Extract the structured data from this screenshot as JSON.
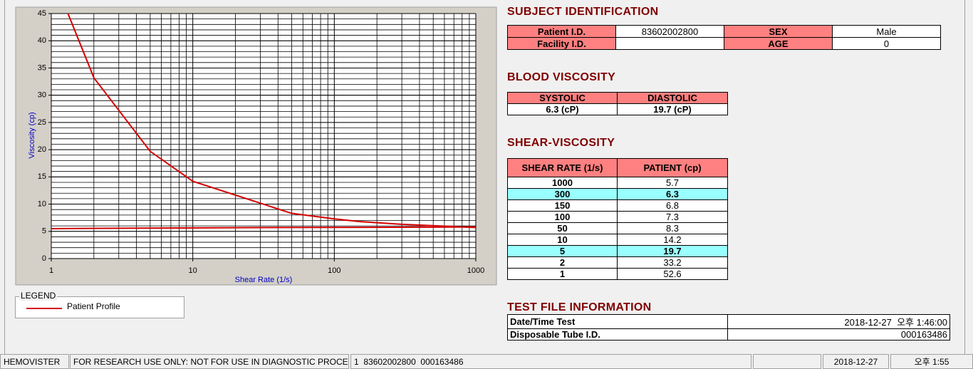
{
  "chart_data": {
    "type": "line",
    "x_label": "Shear Rate (1/s)",
    "y_label": "Viscosity (cp)",
    "log_x": true,
    "xlim": [
      1,
      1000
    ],
    "xticks": [
      1,
      10,
      100,
      1000
    ],
    "ylim": [
      0,
      45
    ],
    "yticks": [
      0,
      5,
      10,
      15,
      20,
      25,
      30,
      35,
      40,
      45
    ],
    "grid": true,
    "minor_grid": true,
    "series": [
      {
        "name": "Patient Profile",
        "color": "#d40000",
        "x": [
          1,
          2,
          5,
          10,
          50,
          100,
          150,
          300,
          1000
        ],
        "values": [
          52.6,
          33.2,
          19.7,
          14.2,
          8.3,
          7.3,
          6.8,
          6.3,
          5.7
        ]
      },
      {
        "color": "#d40000",
        "x": [
          1,
          35,
          1000
        ],
        "values": [
          5.5,
          5.7,
          5.8
        ]
      }
    ]
  },
  "legend": {
    "title": "LEGEND"
  },
  "subject": {
    "title": "SUBJECT IDENTIFICATION",
    "patient_id_label": "Patient I.D.",
    "patient_id": "83602002800",
    "facility_id_label": "Facility I.D.",
    "sex_label": "SEX",
    "sex": "Male",
    "age_label": "AGE",
    "age": 0
  },
  "blood": {
    "title": "BLOOD VISCOSITY",
    "headers": [
      "SYSTOLIC",
      "DIASTOLIC"
    ],
    "values": [
      "6.3 (cP)",
      "19.7 (cP)"
    ]
  },
  "shear": {
    "title": "SHEAR-VISCOSITY",
    "headers": [
      "SHEAR RATE (1/s)",
      "PATIENT (cp)"
    ],
    "rows": [
      [
        1000,
        5.7
      ],
      [
        300,
        6.3
      ],
      [
        150,
        6.8
      ],
      [
        100,
        7.3
      ],
      [
        50,
        8.3
      ],
      [
        10,
        14.2
      ],
      [
        5,
        19.7
      ],
      [
        2,
        33.2
      ],
      [
        1,
        52.6
      ]
    ],
    "highlight_rows": [
      1,
      6
    ]
  },
  "test_file": {
    "title": "TEST FILE INFORMATION",
    "rows": [
      [
        "Date/Time Test",
        "2018-12-27  오후 1:46:00"
      ],
      [
        "Disposable Tube I.D.",
        "000163486"
      ]
    ]
  },
  "status_bar": [
    "HEMOVISTER",
    "FOR RESEARCH USE ONLY: NOT FOR USE IN DIAGNOSTIC PROCEDURES",
    "1  83602002800  000163486",
    "2018-12-27",
    "오후 1:55"
  ]
}
